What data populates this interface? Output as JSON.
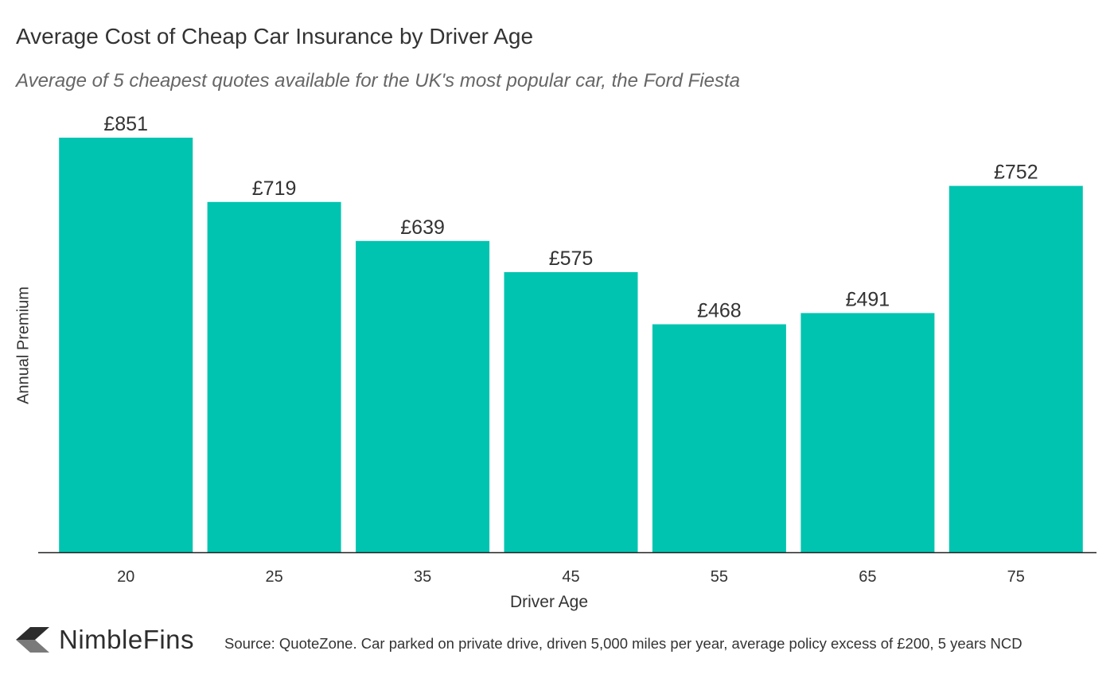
{
  "chart_data": {
    "type": "bar",
    "title": "Average Cost of Cheap Car Insurance by Driver Age",
    "subtitle": "Average of 5 cheapest quotes available for the UK's most popular car, the Ford Fiesta",
    "xlabel": "Driver Age",
    "ylabel": "Annual Premium",
    "categories": [
      "20",
      "25",
      "35",
      "45",
      "55",
      "65",
      "75"
    ],
    "values": [
      851,
      719,
      639,
      575,
      468,
      491,
      752
    ],
    "data_labels": [
      "£851",
      "£719",
      "£639",
      "£575",
      "£468",
      "£491",
      "£752"
    ],
    "ylim": [
      0,
      900
    ],
    "grid": false,
    "legend": "none",
    "bar_color": "#00c4b0"
  },
  "branding": {
    "logo_text": "NimbleFins",
    "logo_icon": "chevron-arrow-icon",
    "logo_color": "#2d2d2d"
  },
  "source": "Source: QuoteZone. Car parked on private drive, driven 5,000 miles per year, average policy excess of £200, 5 years NCD"
}
